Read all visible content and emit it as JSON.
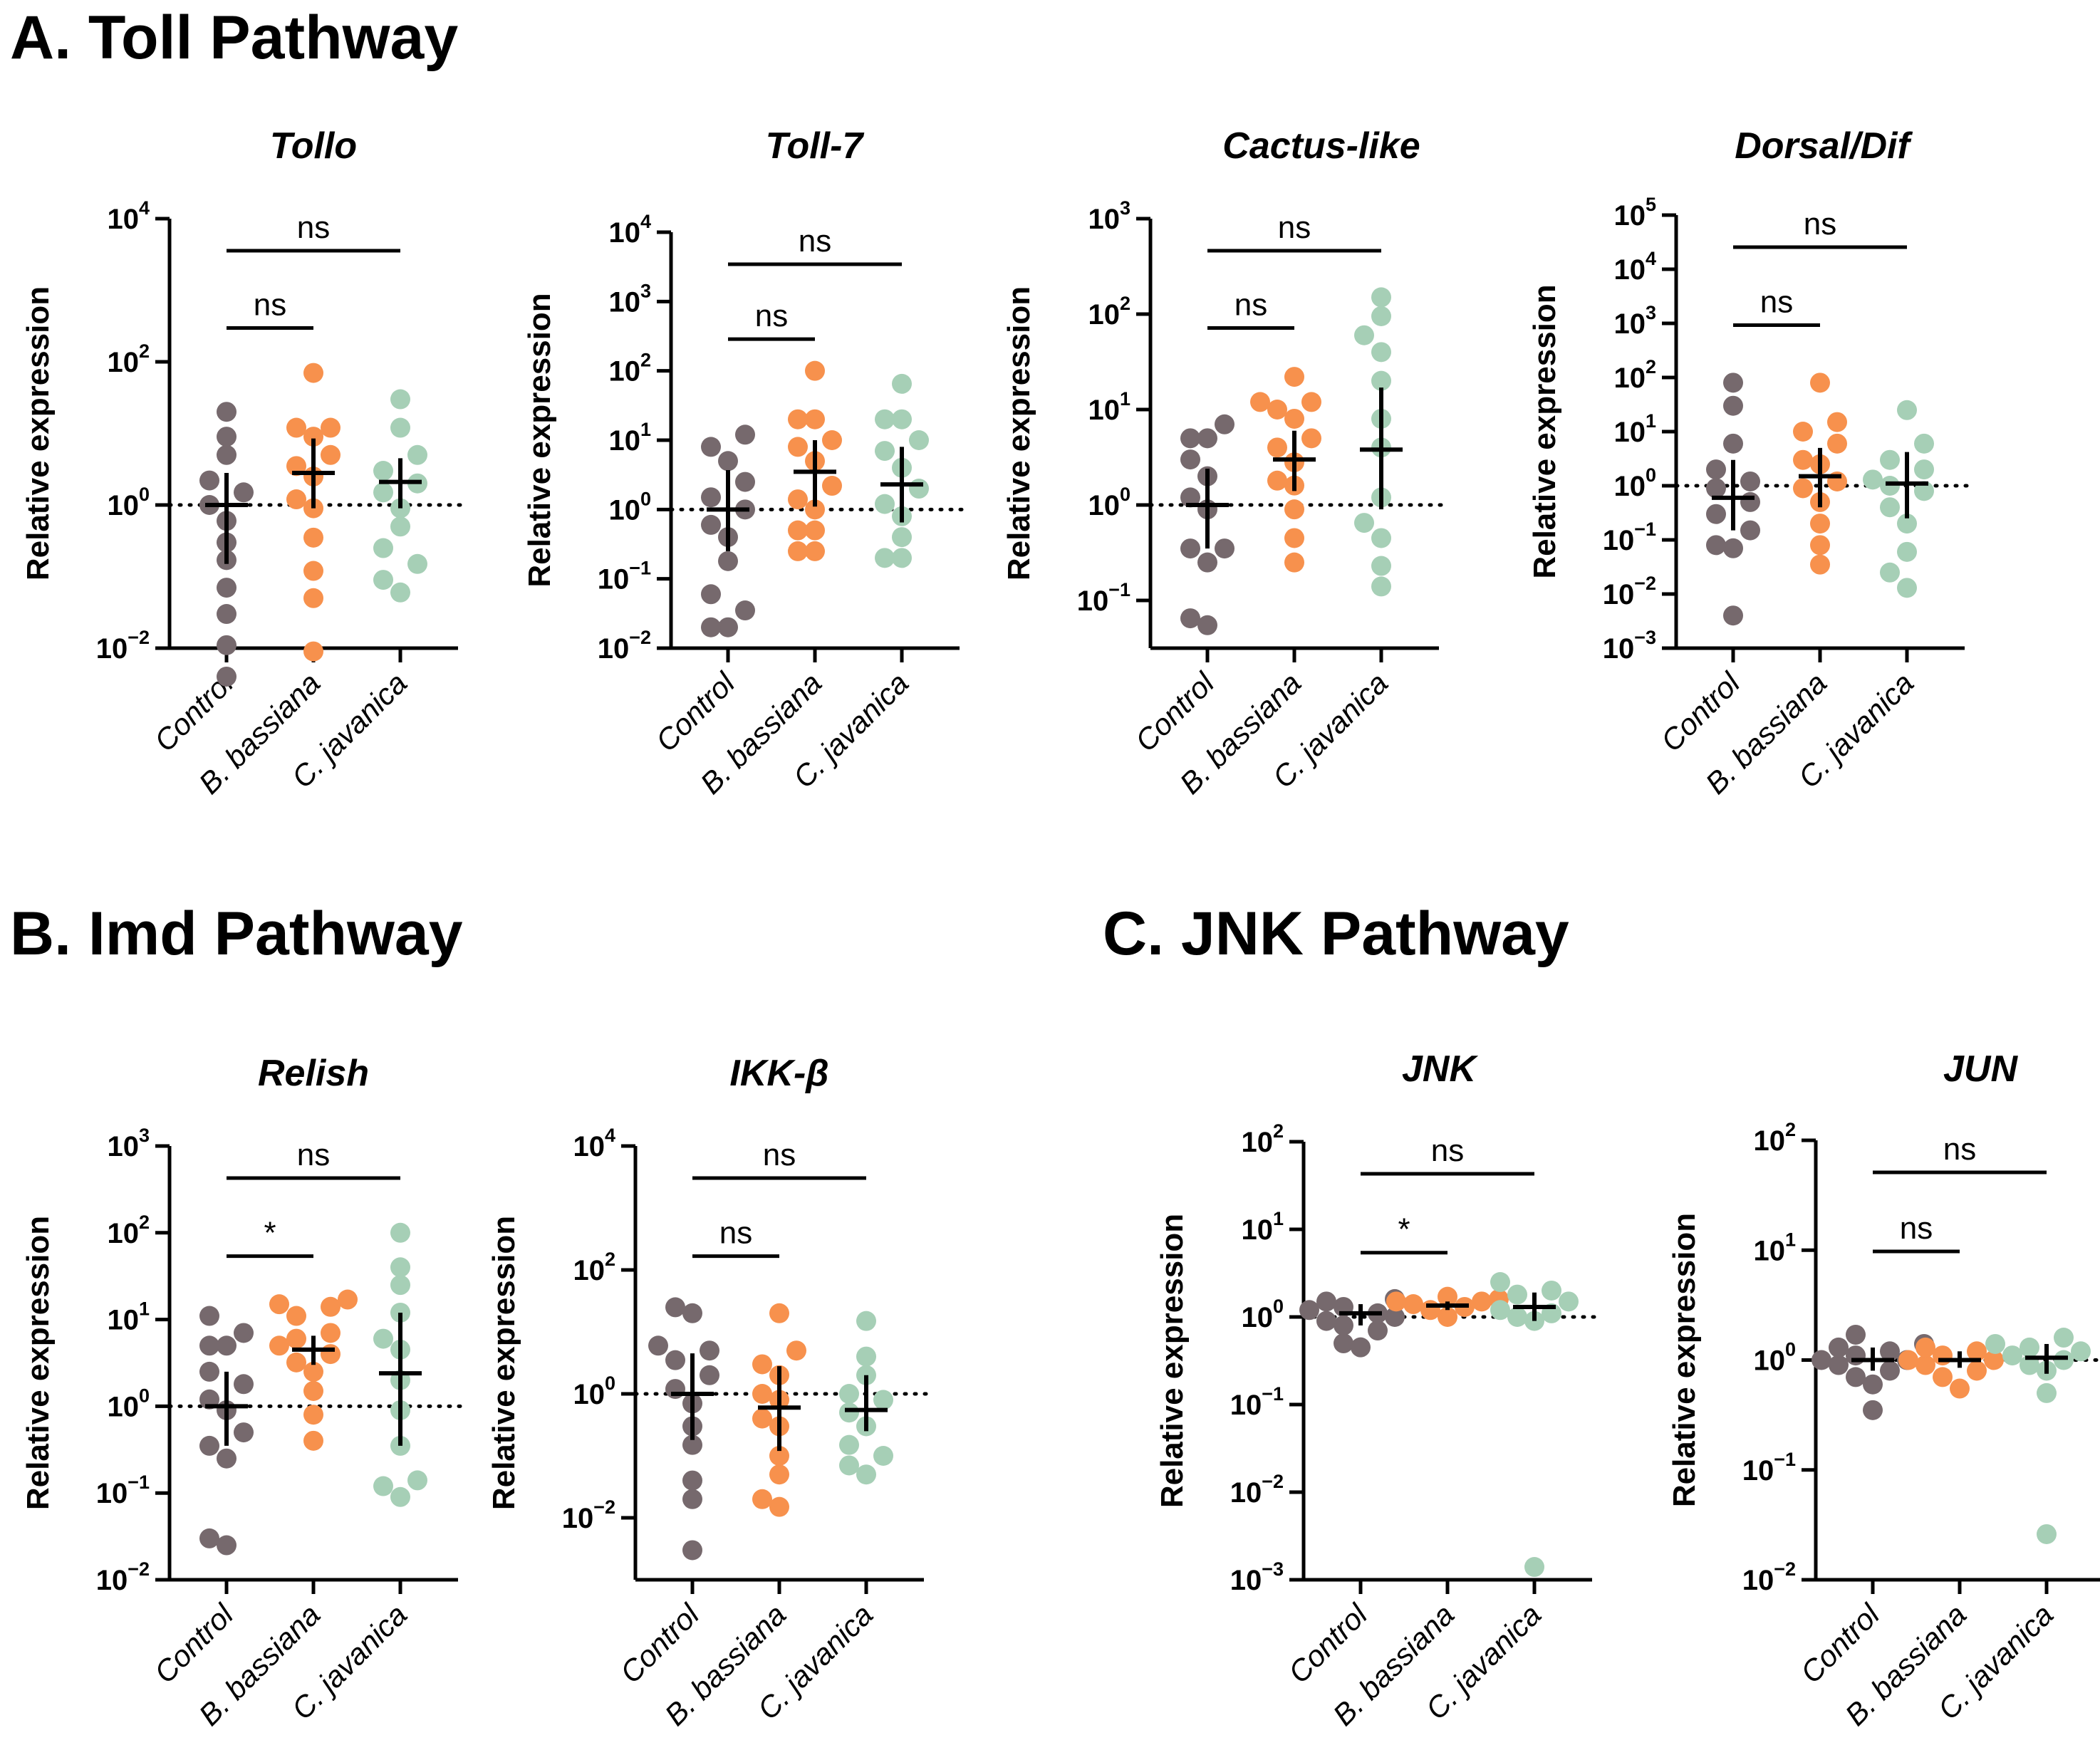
{
  "sections": [
    {
      "label": "A.  Toll Pathway"
    },
    {
      "label": "B. Imd Pathway"
    },
    {
      "label": "C. JNK Pathway"
    }
  ],
  "colors": {
    "Control": "#76696d",
    "B. bassiana": "#f7914d",
    "C. javanica": "#a6cfb6"
  },
  "chart_data": [
    {
      "type": "scatter",
      "title": "Tollo",
      "ylabel": "Relative expression",
      "yscale": "log10",
      "ylim_exp": [
        -2,
        4
      ],
      "tick_exps": [
        -2,
        0,
        2,
        4
      ],
      "categories": [
        "Control",
        "B. bassiana",
        "C. javanica"
      ],
      "series": [
        {
          "name": "Control",
          "points": [
            0.004,
            0.011,
            0.03,
            0.07,
            0.17,
            0.3,
            0.6,
            1.0,
            1.5,
            2.2,
            5,
            9,
            20
          ],
          "center": 1.0,
          "err": [
            0.15,
            2.8
          ]
        },
        {
          "name": "B. bassiana",
          "points": [
            0.009,
            0.05,
            0.12,
            0.35,
            0.9,
            1.2,
            2.5,
            3.5,
            5,
            9,
            12,
            12,
            70
          ],
          "center": 2.8,
          "err": [
            0.9,
            8.5
          ]
        },
        {
          "name": "C. javanica",
          "points": [
            0.06,
            0.09,
            0.15,
            0.25,
            0.5,
            0.9,
            1.5,
            2.0,
            3.0,
            5,
            12,
            30
          ],
          "center": 2.1,
          "err": [
            0.9,
            4.5
          ]
        }
      ],
      "comparisons": [
        {
          "from": 0,
          "to": 1,
          "label": "ns"
        },
        {
          "from": 0,
          "to": 2,
          "label": "ns"
        }
      ]
    },
    {
      "type": "scatter",
      "title": "Toll-7",
      "ylabel": "Relative expression",
      "yscale": "log10",
      "ylim_exp": [
        -2,
        4
      ],
      "tick_exps": [
        -2,
        -1,
        0,
        1,
        2,
        3,
        4
      ],
      "categories": [
        "Control",
        "B. bassiana",
        "C. javanica"
      ],
      "series": [
        {
          "name": "Control",
          "points": [
            0.02,
            0.02,
            0.035,
            0.06,
            0.18,
            0.4,
            0.6,
            1.0,
            1.5,
            2.5,
            5,
            8,
            12
          ],
          "center": 1.0,
          "err": [
            0.25,
            3.7
          ]
        },
        {
          "name": "B. bassiana",
          "points": [
            0.25,
            0.25,
            0.5,
            0.5,
            1.0,
            1.4,
            2.2,
            5,
            8,
            10,
            20,
            20,
            100
          ],
          "center": 3.5,
          "err": [
            1.1,
            10
          ]
        },
        {
          "name": "C. javanica",
          "points": [
            0.2,
            0.2,
            0.4,
            0.8,
            1.2,
            2.0,
            4.0,
            7.0,
            10,
            20,
            20,
            65
          ],
          "center": 2.3,
          "err": [
            0.65,
            8
          ]
        }
      ],
      "comparisons": [
        {
          "from": 0,
          "to": 1,
          "label": "ns"
        },
        {
          "from": 0,
          "to": 2,
          "label": "ns"
        }
      ]
    },
    {
      "type": "scatter",
      "title": "Cactus-like",
      "ylabel": "Relative expression",
      "yscale": "log10",
      "ylim_exp": [
        -1.5,
        3
      ],
      "tick_exps": [
        -1,
        0,
        1,
        2,
        3
      ],
      "categories": [
        "Control",
        "B. bassiana",
        "C. javanica"
      ],
      "series": [
        {
          "name": "Control",
          "points": [
            0.055,
            0.065,
            0.25,
            0.35,
            0.35,
            0.9,
            1.2,
            2.0,
            3.0,
            5,
            5,
            7
          ],
          "center": 1.0,
          "err": [
            0.35,
            2.4
          ]
        },
        {
          "name": "B. bassiana",
          "points": [
            0.25,
            0.45,
            0.9,
            1.6,
            1.8,
            2.8,
            4.0,
            5,
            8,
            10,
            12,
            12,
            22
          ],
          "center": 3.0,
          "err": [
            1.4,
            6
          ]
        },
        {
          "name": "C. javanica",
          "points": [
            0.14,
            0.23,
            0.45,
            0.65,
            1.2,
            4.0,
            8,
            20,
            40,
            60,
            95,
            150
          ],
          "center": 3.8,
          "err": [
            0.9,
            17
          ]
        }
      ],
      "comparisons": [
        {
          "from": 0,
          "to": 1,
          "label": "ns"
        },
        {
          "from": 0,
          "to": 2,
          "label": "ns"
        }
      ]
    },
    {
      "type": "scatter",
      "title": "Dorsal/Dif",
      "ylabel": "Relative expression",
      "yscale": "log10",
      "ylim_exp": [
        -3,
        5
      ],
      "tick_exps": [
        -3,
        -2,
        -1,
        0,
        1,
        2,
        3,
        4,
        5
      ],
      "categories": [
        "Control",
        "B. bassiana",
        "C. javanica"
      ],
      "series": [
        {
          "name": "Control",
          "points": [
            0.004,
            0.07,
            0.08,
            0.15,
            0.3,
            0.5,
            0.9,
            1.2,
            2.0,
            6.0,
            30,
            80
          ],
          "center": 0.6,
          "err": [
            0.15,
            3.0
          ]
        },
        {
          "name": "B. bassiana",
          "points": [
            0.035,
            0.08,
            0.2,
            0.5,
            0.9,
            1.2,
            2.5,
            3.0,
            6.0,
            10,
            15,
            80
          ],
          "center": 1.5,
          "err": [
            0.4,
            5
          ]
        },
        {
          "name": "C. javanica",
          "points": [
            0.013,
            0.025,
            0.06,
            0.2,
            0.4,
            0.8,
            1.0,
            1.3,
            2.0,
            3.0,
            6.0,
            25
          ],
          "center": 1.1,
          "err": [
            0.25,
            4.2
          ]
        }
      ],
      "comparisons": [
        {
          "from": 0,
          "to": 1,
          "label": "ns"
        },
        {
          "from": 0,
          "to": 2,
          "label": "ns"
        }
      ]
    },
    {
      "type": "scatter",
      "title": "Relish",
      "ylabel": "Relative expression",
      "yscale": "log10",
      "ylim_exp": [
        -2,
        3
      ],
      "tick_exps": [
        -2,
        -1,
        0,
        1,
        2,
        3
      ],
      "categories": [
        "Control",
        "B. bassiana",
        "C. javanica"
      ],
      "series": [
        {
          "name": "Control",
          "points": [
            0.025,
            0.03,
            0.25,
            0.35,
            0.5,
            0.9,
            1.2,
            1.8,
            2.5,
            5.0,
            5.0,
            7.0,
            11
          ],
          "center": 1.0,
          "err": [
            0.35,
            2.5
          ]
        },
        {
          "name": "B. bassiana",
          "points": [
            0.4,
            0.8,
            1.5,
            2.5,
            3.2,
            4.0,
            5.0,
            6.0,
            7.0,
            11,
            14,
            15,
            17
          ],
          "center": 4.5,
          "err": [
            3.0,
            6.5
          ]
        },
        {
          "name": "C. javanica",
          "points": [
            0.09,
            0.12,
            0.14,
            0.35,
            0.9,
            2.0,
            4.5,
            6.0,
            12,
            25,
            40,
            100
          ],
          "center": 2.4,
          "err": [
            0.35,
            12
          ]
        }
      ],
      "comparisons": [
        {
          "from": 0,
          "to": 1,
          "label": "*"
        },
        {
          "from": 0,
          "to": 2,
          "label": "ns"
        }
      ]
    },
    {
      "type": "scatter",
      "title": "IKK-β",
      "ylabel": "Relative expression",
      "yscale": "log10",
      "ylim_exp": [
        -3,
        4
      ],
      "tick_exps": [
        -2,
        0,
        2,
        4
      ],
      "categories": [
        "Control",
        "B. bassiana",
        "C. javanica"
      ],
      "series": [
        {
          "name": "Control",
          "points": [
            0.003,
            0.02,
            0.04,
            0.15,
            0.3,
            0.7,
            1.2,
            2.0,
            3.5,
            5.0,
            6.0,
            20,
            25
          ],
          "center": 1.0,
          "err": [
            0.18,
            4.5
          ]
        },
        {
          "name": "B. bassiana",
          "points": [
            0.015,
            0.02,
            0.05,
            0.1,
            0.3,
            0.4,
            0.8,
            1.0,
            2.0,
            3.0,
            5.0,
            20
          ],
          "center": 0.6,
          "err": [
            0.12,
            2.8
          ]
        },
        {
          "name": "C. javanica",
          "points": [
            0.05,
            0.07,
            0.1,
            0.15,
            0.3,
            0.5,
            0.8,
            1.0,
            2.0,
            4.0,
            15
          ],
          "center": 0.55,
          "err": [
            0.25,
            2.0
          ]
        }
      ],
      "comparisons": [
        {
          "from": 0,
          "to": 1,
          "label": "ns"
        },
        {
          "from": 0,
          "to": 2,
          "label": "ns"
        }
      ]
    },
    {
      "type": "scatter",
      "title": "JNK",
      "ylabel": "Relative expression",
      "yscale": "log10",
      "ylim_exp": [
        -3,
        2
      ],
      "tick_exps": [
        -3,
        -2,
        -1,
        0,
        1,
        2
      ],
      "categories": [
        "Control",
        "B. bassiana",
        "C. javanica"
      ],
      "series": [
        {
          "name": "Control",
          "points": [
            0.45,
            0.5,
            0.7,
            0.8,
            0.9,
            1.0,
            1.1,
            1.2,
            1.3,
            1.5,
            1.6
          ],
          "center": 1.1,
          "err": [
            0.8,
            1.4
          ]
        },
        {
          "name": "B. bassiana",
          "points": [
            1.0,
            1.2,
            1.3,
            1.4,
            1.5,
            1.5,
            1.6,
            1.7
          ],
          "center": 1.35,
          "err": [
            1.2,
            1.5
          ]
        },
        {
          "name": "C. javanica",
          "points": [
            0.0014,
            0.9,
            1.0,
            1.1,
            1.2,
            1.5,
            1.8,
            2.0,
            2.5
          ],
          "center": 1.3,
          "err": [
            0.9,
            1.9
          ]
        }
      ],
      "comparisons": [
        {
          "from": 0,
          "to": 1,
          "label": "*"
        },
        {
          "from": 0,
          "to": 2,
          "label": "ns"
        }
      ]
    },
    {
      "type": "scatter",
      "title": "JUN",
      "ylabel": "Relative expression",
      "yscale": "log10",
      "ylim_exp": [
        -2,
        2
      ],
      "tick_exps": [
        -2,
        -1,
        0,
        1,
        2
      ],
      "categories": [
        "Control",
        "B. bassiana",
        "C. javanica"
      ],
      "series": [
        {
          "name": "Control",
          "points": [
            0.35,
            0.6,
            0.7,
            0.8,
            0.9,
            1.0,
            1.0,
            1.1,
            1.2,
            1.3,
            1.4,
            1.7
          ],
          "center": 1.0,
          "err": [
            0.8,
            1.3
          ]
        },
        {
          "name": "B. bassiana",
          "points": [
            0.55,
            0.7,
            0.8,
            0.9,
            1.0,
            1.0,
            1.1,
            1.2,
            1.3
          ],
          "center": 1.0,
          "err": [
            0.85,
            1.2
          ]
        },
        {
          "name": "C. javanica",
          "points": [
            0.026,
            0.5,
            0.8,
            0.9,
            1.0,
            1.1,
            1.2,
            1.3,
            1.4,
            1.6
          ],
          "center": 1.05,
          "err": [
            0.75,
            1.4
          ]
        }
      ],
      "comparisons": [
        {
          "from": 0,
          "to": 1,
          "label": "ns"
        },
        {
          "from": 0,
          "to": 2,
          "label": "ns"
        }
      ]
    }
  ]
}
